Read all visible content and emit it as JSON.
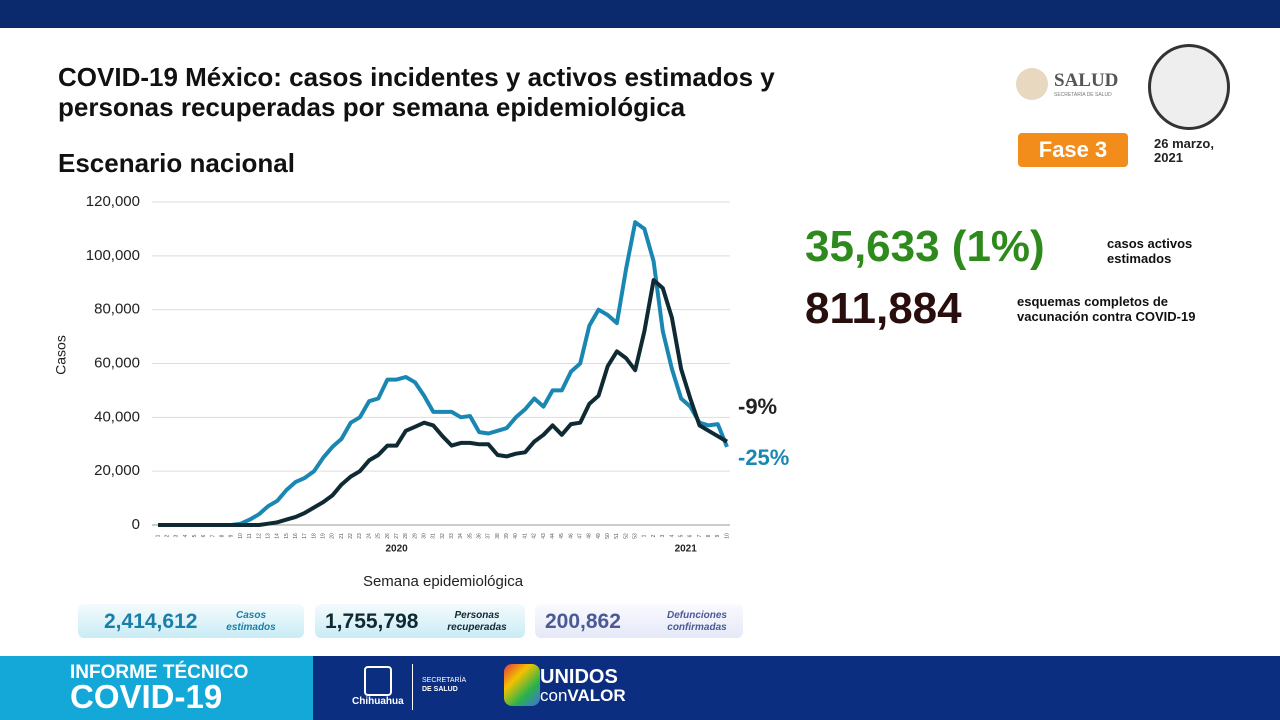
{
  "header": {
    "title_line1": "COVID-19 México: casos incidentes y activos estimados y",
    "title_line2": "personas recuperadas por semana epidemiológica",
    "subtitle": "Escenario nacional",
    "logo_text": "SALUD",
    "logo_subtext": "SECRETARÍA DE SALUD",
    "phase": "Fase 3",
    "date_line1": "26 marzo,",
    "date_line2": "2021"
  },
  "chart_data": {
    "type": "line",
    "y_label": "Casos",
    "x_label": "Semana epidemiológica",
    "year_labels": [
      "2020",
      "2021"
    ],
    "categories": [
      "1",
      "2",
      "3",
      "4",
      "5",
      "6",
      "7",
      "8",
      "9",
      "10",
      "11",
      "12",
      "13",
      "14",
      "15",
      "16",
      "17",
      "18",
      "19",
      "20",
      "21",
      "22",
      "23",
      "24",
      "25",
      "26",
      "27",
      "28",
      "29",
      "30",
      "31",
      "32",
      "33",
      "34",
      "35",
      "36",
      "37",
      "38",
      "39",
      "40",
      "41",
      "42",
      "43",
      "44",
      "45",
      "46",
      "47",
      "48",
      "49",
      "50",
      "51",
      "52",
      "53",
      "1",
      "2",
      "3",
      "4",
      "5",
      "6",
      "7",
      "8",
      "9",
      "10"
    ],
    "series": [
      {
        "color": "#1a87b3",
        "values": [
          0,
          0,
          0,
          0,
          0,
          0,
          0,
          0,
          0,
          500,
          2000,
          4000,
          7000,
          9000,
          13000,
          16000,
          17500,
          20000,
          25000,
          29000,
          32000,
          38000,
          40000,
          46000,
          47000,
          54000,
          54000,
          55000,
          53000,
          48000,
          42000,
          42000,
          42000,
          40000,
          40500,
          34500,
          34000,
          35000,
          36000,
          40000,
          43000,
          47000,
          44000,
          50000,
          50000,
          57000,
          60000,
          74000,
          80000,
          78000,
          75000,
          95000,
          112500,
          110000,
          98000,
          72000,
          58000,
          47000,
          44000,
          38000,
          37000,
          37500,
          29000
        ],
        "end_label": "-25%"
      },
      {
        "color": "#0f2a33",
        "values": [
          0,
          0,
          0,
          0,
          0,
          0,
          0,
          0,
          0,
          0,
          0,
          0,
          500,
          1000,
          2000,
          3000,
          4500,
          6500,
          8500,
          11000,
          15000,
          18000,
          20000,
          24000,
          26000,
          29500,
          29500,
          35000,
          36500,
          38000,
          37000,
          33000,
          29500,
          30500,
          30500,
          30000,
          30000,
          26000,
          25500,
          26500,
          27000,
          31000,
          33500,
          37000,
          33500,
          37500,
          38000,
          45000,
          48000,
          59000,
          64500,
          62000,
          57500,
          72000,
          91000,
          88000,
          77000,
          58000,
          47000,
          37000,
          35000,
          33000,
          31000
        ],
        "end_label": "-9%"
      }
    ],
    "ylim": [
      0,
      120000
    ],
    "yticks": [
      0,
      {
        "value": 20000,
        "label": "20,000"
      },
      {
        "value": 40000,
        "label": "40,000"
      },
      {
        "value": 60000,
        "label": "60,000"
      },
      {
        "value": 80000,
        "label": "80,000"
      },
      {
        "value": 100000,
        "label": "100,000"
      },
      {
        "value": 120000,
        "label": "120,000"
      }
    ],
    "grid": true
  },
  "stats": [
    {
      "value": "35,633 (1%)",
      "label_line1": "casos activos",
      "label_line2": "estimados"
    },
    {
      "value": "811,884",
      "label_line1": "esquemas completos de",
      "label_line2": "vacunación contra COVID-19"
    }
  ],
  "boxes": [
    {
      "value": "2,414,612",
      "label_line1": "Casos",
      "label_line2": "estimados"
    },
    {
      "value": "1,755,798",
      "label_line1": "Personas",
      "label_line2": "recuperadas"
    },
    {
      "value": "200,862",
      "label_line1": "Defunciones",
      "label_line2": "confirmadas"
    }
  ],
  "footer": {
    "report_line1": "INFORME TÉCNICO",
    "report_line2": "COVID-19",
    "state": "Chihuahua",
    "secretariat_line1": "SECRETARÍA",
    "secretariat_line2": "DE SALUD",
    "slogan_line1": "UNIDOS",
    "slogan_line2a": "con",
    "slogan_line2b": "VALOR"
  }
}
